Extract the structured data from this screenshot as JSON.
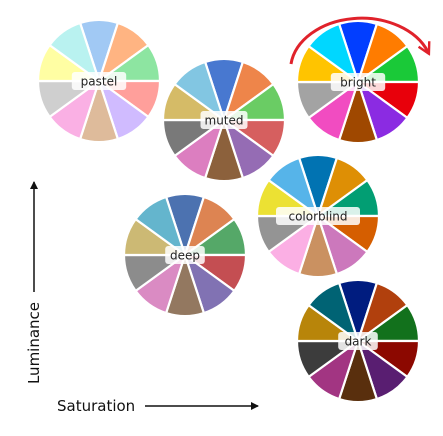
{
  "axes": {
    "x_label": "Saturation",
    "y_label": "Luminance",
    "axis_color": "#111111"
  },
  "highlight_arrow_color": "#e0222b",
  "palettes": [
    {
      "name": "pastel",
      "colors": [
        "#a1c9f4",
        "#ffb482",
        "#8de5a1",
        "#ff9f9b",
        "#d0bbff",
        "#debb9b",
        "#fab0e4",
        "#cfcfcf",
        "#fffea3",
        "#b9f2f0"
      ]
    },
    {
      "name": "muted",
      "colors": [
        "#4878d0",
        "#ee854a",
        "#6acc64",
        "#d65f5f",
        "#956cb4",
        "#8c613c",
        "#dc7ec0",
        "#797979",
        "#d5bb67",
        "#82c6e2"
      ]
    },
    {
      "name": "bright",
      "colors": [
        "#023eff",
        "#ff7c00",
        "#1ac938",
        "#e8000b",
        "#8b2be2",
        "#9f4800",
        "#f14cc1",
        "#a3a3a3",
        "#ffc400",
        "#00d7ff"
      ]
    },
    {
      "name": "colorblind",
      "colors": [
        "#0173b2",
        "#de8f05",
        "#029e73",
        "#d55e00",
        "#cc78bc",
        "#ca9161",
        "#fbafe4",
        "#949494",
        "#ece133",
        "#56b4e9"
      ]
    },
    {
      "name": "deep",
      "colors": [
        "#4c72b0",
        "#dd8452",
        "#55a868",
        "#c44e52",
        "#8172b3",
        "#937860",
        "#da8bc3",
        "#8c8c8c",
        "#ccb974",
        "#64b5cd"
      ]
    },
    {
      "name": "dark",
      "colors": [
        "#001c7f",
        "#b1400d",
        "#12711c",
        "#8c0800",
        "#591e71",
        "#592f0d",
        "#a23582",
        "#3c3c3c",
        "#b8850a",
        "#006374"
      ]
    }
  ]
}
